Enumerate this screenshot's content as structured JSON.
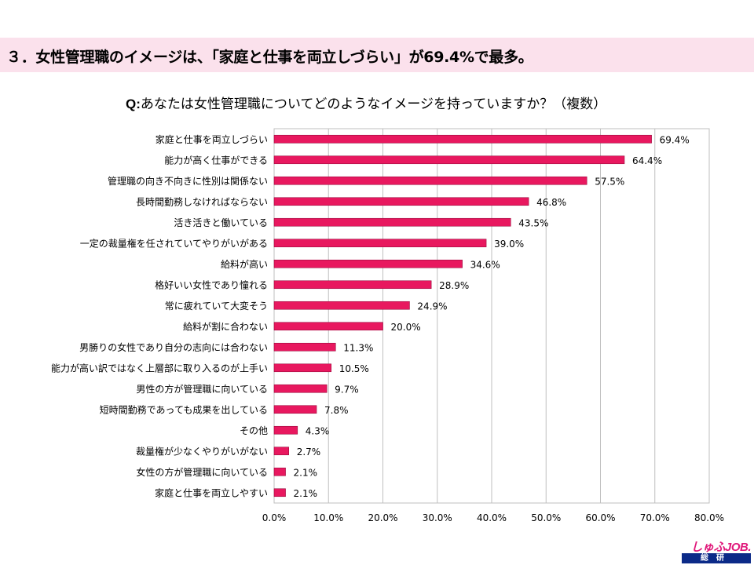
{
  "header": {
    "title": "３．女性管理職のイメージは、「家庭と仕事を両立しづらい」が69.4%で最多。"
  },
  "question": {
    "prefix": "Q:",
    "text": "あなたは女性管理職についてどのようなイメージを持っていますか？（複数）"
  },
  "logo": {
    "brand": "しゅふJOB.",
    "sub": "総研"
  },
  "colors": {
    "bar": "#e8185f",
    "header_band": "#fbe1ec",
    "grid": "#bfbfbf"
  },
  "chart_data": {
    "type": "bar",
    "orientation": "horizontal",
    "categories": [
      "家庭と仕事を両立しづらい",
      "能力が高く仕事ができる",
      "管理職の向き不向きに性別は関係ない",
      "長時間勤務しなければならない",
      "活き活きと働いている",
      "一定の裁量権を任されていてやりがいがある",
      "給料が高い",
      "格好いい女性であり憧れる",
      "常に疲れていて大変そう",
      "給料が割に合わない",
      "男勝りの女性であり自分の志向には合わない",
      "能力が高い訳ではなく上層部に取り入るのが上手い",
      "男性の方が管理職に向いている",
      "短時間勤務であっても成果を出している",
      "その他",
      "裁量権が少なくやりがいがない",
      "女性の方が管理職に向いている",
      "家庭と仕事を両立しやすい"
    ],
    "values": [
      69.4,
      64.4,
      57.5,
      46.8,
      43.5,
      39.0,
      34.6,
      28.9,
      24.9,
      20.0,
      11.3,
      10.5,
      9.7,
      7.8,
      4.3,
      2.7,
      2.1,
      2.1
    ],
    "value_labels": [
      "69.4%",
      "64.4%",
      "57.5%",
      "46.8%",
      "43.5%",
      "39.0%",
      "34.6%",
      "28.9%",
      "24.9%",
      "20.0%",
      "11.3%",
      "10.5%",
      "9.7%",
      "7.8%",
      "4.3%",
      "2.7%",
      "2.1%",
      "2.1%"
    ],
    "x_ticks": [
      "0.0%",
      "10.0%",
      "20.0%",
      "30.0%",
      "40.0%",
      "50.0%",
      "60.0%",
      "70.0%",
      "80.0%"
    ],
    "xlim": [
      0,
      80
    ],
    "grid": true
  }
}
